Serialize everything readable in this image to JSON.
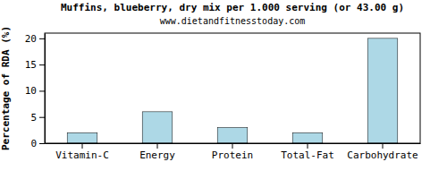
{
  "chart_data": {
    "type": "bar",
    "title": "Muffins, blueberry, dry mix per 1.000 serving (or 43.00 g)",
    "subtitle": "www.dietandfitnesstoday.com",
    "y_label": "Percentage of RDA (%)",
    "categories": [
      "Vitamin-C",
      "Energy",
      "Protein",
      "Total-Fat",
      "Carbohydrate"
    ],
    "values": [
      2,
      6,
      3,
      2,
      20
    ],
    "color": "#add8e6",
    "ylim": [
      0,
      21
    ],
    "yticks": [
      0,
      5,
      10,
      15,
      20
    ],
    "grid": false
  }
}
